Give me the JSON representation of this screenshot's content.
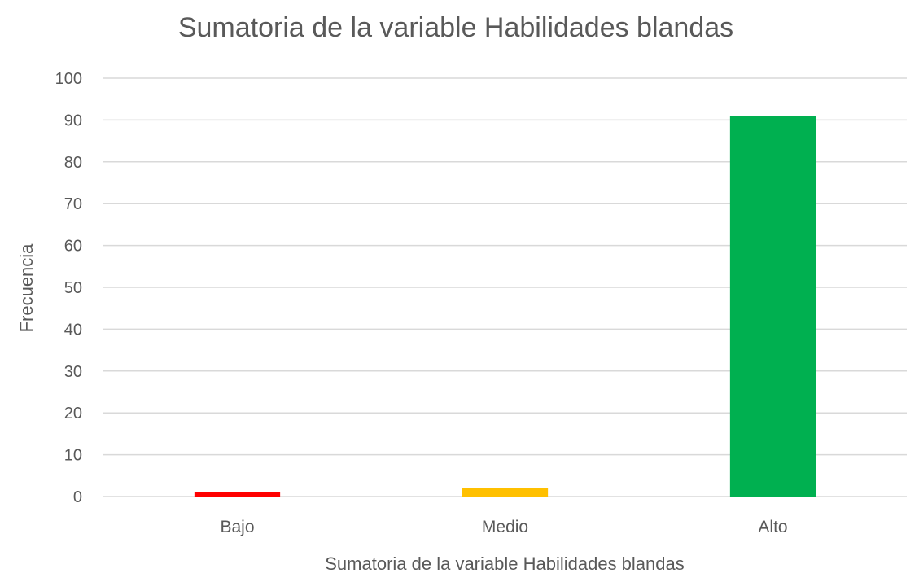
{
  "chart_data": {
    "type": "bar",
    "title": "Sumatoria de la variable Habilidades blandas",
    "xlabel": "Sumatoria de la variable Habilidades blandas",
    "ylabel": "Frecuencia",
    "categories": [
      "Bajo",
      "Medio",
      "Alto"
    ],
    "values": [
      1,
      2,
      91
    ],
    "colors": [
      "#ff0000",
      "#ffc000",
      "#00b050"
    ],
    "ylim": [
      0,
      100
    ],
    "yticks": [
      0,
      10,
      20,
      30,
      40,
      50,
      60,
      70,
      80,
      90,
      100
    ],
    "grid": true,
    "legend": "none"
  }
}
